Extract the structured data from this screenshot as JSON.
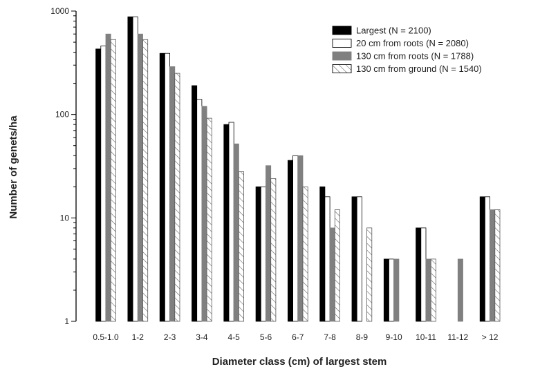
{
  "chart_data": {
    "type": "bar",
    "title": "",
    "xlabel": "Diameter class (cm) of largest stem",
    "ylabel": "Number of genets/ha",
    "yscale": "log",
    "ylim": [
      1,
      1000
    ],
    "yticks": [
      1,
      10,
      100,
      1000
    ],
    "ytick_labels": [
      "1",
      "10",
      "100",
      "1000"
    ],
    "grid": false,
    "legend_position": "top-right",
    "categories": [
      "0.5-1.0",
      "1-2",
      "2-3",
      "3-4",
      "4-5",
      "5-6",
      "6-7",
      "7-8",
      "8-9",
      "9-10",
      "10-11",
      "11-12",
      "> 12"
    ],
    "series": [
      {
        "name": "Largest (N = 2100)",
        "style": "solid-black",
        "values": [
          430,
          880,
          390,
          190,
          80,
          20,
          36,
          20,
          16,
          4,
          8,
          0,
          16
        ]
      },
      {
        "name": "20 cm from roots (N = 2080)",
        "style": "white",
        "values": [
          460,
          880,
          390,
          140,
          84,
          20,
          40,
          16,
          16,
          4,
          8,
          0,
          16
        ]
      },
      {
        "name": "130 cm from roots (N = 1788)",
        "style": "gray",
        "values": [
          600,
          600,
          290,
          120,
          52,
          32,
          40,
          8,
          0,
          4,
          4,
          4,
          12
        ]
      },
      {
        "name": "130 cm from ground (N = 1540)",
        "style": "hatched",
        "values": [
          530,
          530,
          250,
          92,
          28,
          24,
          20,
          12,
          8,
          0,
          4,
          0,
          12
        ]
      }
    ]
  },
  "colors": {
    "solid": "#000000",
    "white": "#ffffff",
    "gray": "#808080",
    "hatch": "#555555",
    "axis": "#000000"
  }
}
